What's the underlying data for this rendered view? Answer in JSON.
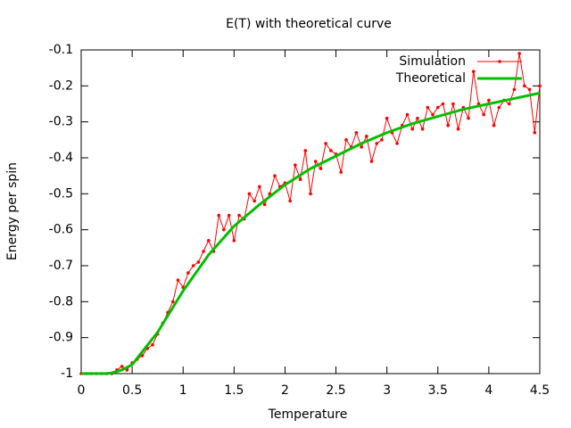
{
  "chart_data": {
    "type": "line",
    "title": "E(T) with theoretical curve",
    "x_label": "Temperature",
    "y_label": "Energy per spin",
    "xlim": [
      0,
      4.5
    ],
    "ylim": [
      -1,
      -0.1
    ],
    "xticks": [
      0,
      0.5,
      1,
      1.5,
      2,
      2.5,
      3,
      3.5,
      4,
      4.5
    ],
    "yticks": [
      -1,
      -0.9,
      -0.8,
      -0.7,
      -0.6,
      -0.5,
      -0.4,
      -0.3,
      -0.2,
      -0.1
    ],
    "legend": "top-right",
    "series": [
      {
        "name": "Simulation",
        "color": "#ff0000",
        "markers": true,
        "x": [
          0,
          0.05,
          0.1,
          0.15,
          0.2,
          0.25,
          0.3,
          0.35,
          0.4,
          0.45,
          0.5,
          0.55,
          0.6,
          0.65,
          0.7,
          0.75,
          0.8,
          0.85,
          0.9,
          0.95,
          1,
          1.05,
          1.1,
          1.15,
          1.2,
          1.25,
          1.3,
          1.35,
          1.4,
          1.45,
          1.5,
          1.55,
          1.6,
          1.65,
          1.7,
          1.75,
          1.8,
          1.85,
          1.9,
          1.95,
          2,
          2.05,
          2.1,
          2.15,
          2.2,
          2.25,
          2.3,
          2.35,
          2.4,
          2.45,
          2.5,
          2.55,
          2.6,
          2.65,
          2.7,
          2.75,
          2.8,
          2.85,
          2.9,
          2.95,
          3,
          3.05,
          3.1,
          3.15,
          3.2,
          3.25,
          3.3,
          3.35,
          3.4,
          3.45,
          3.5,
          3.55,
          3.6,
          3.65,
          3.7,
          3.75,
          3.8,
          3.85,
          3.9,
          3.95,
          4,
          4.05,
          4.1,
          4.15,
          4.2,
          4.25,
          4.3,
          4.35,
          4.4,
          4.45,
          4.5
        ],
        "values": [
          -1,
          -1,
          -1,
          -1,
          -1,
          -1,
          -1,
          -0.99,
          -0.98,
          -0.99,
          -0.97,
          -0.96,
          -0.95,
          -0.93,
          -0.92,
          -0.89,
          -0.86,
          -0.83,
          -0.8,
          -0.74,
          -0.76,
          -0.72,
          -0.7,
          -0.69,
          -0.66,
          -0.63,
          -0.66,
          -0.56,
          -0.6,
          -0.56,
          -0.63,
          -0.56,
          -0.57,
          -0.5,
          -0.52,
          -0.48,
          -0.53,
          -0.5,
          -0.45,
          -0.48,
          -0.47,
          -0.52,
          -0.42,
          -0.46,
          -0.38,
          -0.5,
          -0.41,
          -0.43,
          -0.36,
          -0.38,
          -0.39,
          -0.44,
          -0.35,
          -0.37,
          -0.33,
          -0.37,
          -0.34,
          -0.41,
          -0.36,
          -0.35,
          -0.29,
          -0.33,
          -0.36,
          -0.31,
          -0.28,
          -0.32,
          -0.29,
          -0.32,
          -0.26,
          -0.28,
          -0.26,
          -0.25,
          -0.31,
          -0.25,
          -0.32,
          -0.26,
          -0.29,
          -0.16,
          -0.25,
          -0.28,
          -0.24,
          -0.31,
          -0.26,
          -0.24,
          -0.25,
          -0.21,
          -0.11,
          -0.2,
          -0.21,
          -0.33,
          -0.2
        ]
      },
      {
        "name": "Theoretical",
        "color": "#00c000",
        "markers": false,
        "x": [
          0,
          0.25,
          0.3,
          0.4,
          0.5,
          0.75,
          1,
          1.25,
          1.5,
          1.75,
          2,
          2.25,
          2.5,
          2.75,
          3,
          3.25,
          3.5,
          3.75,
          4,
          4.25,
          4.5
        ],
        "values": [
          -1,
          -1,
          -0.998,
          -0.99,
          -0.975,
          -0.885,
          -0.77,
          -0.67,
          -0.59,
          -0.53,
          -0.475,
          -0.43,
          -0.395,
          -0.36,
          -0.33,
          -0.305,
          -0.285,
          -0.265,
          -0.25,
          -0.235,
          -0.22
        ]
      }
    ]
  }
}
